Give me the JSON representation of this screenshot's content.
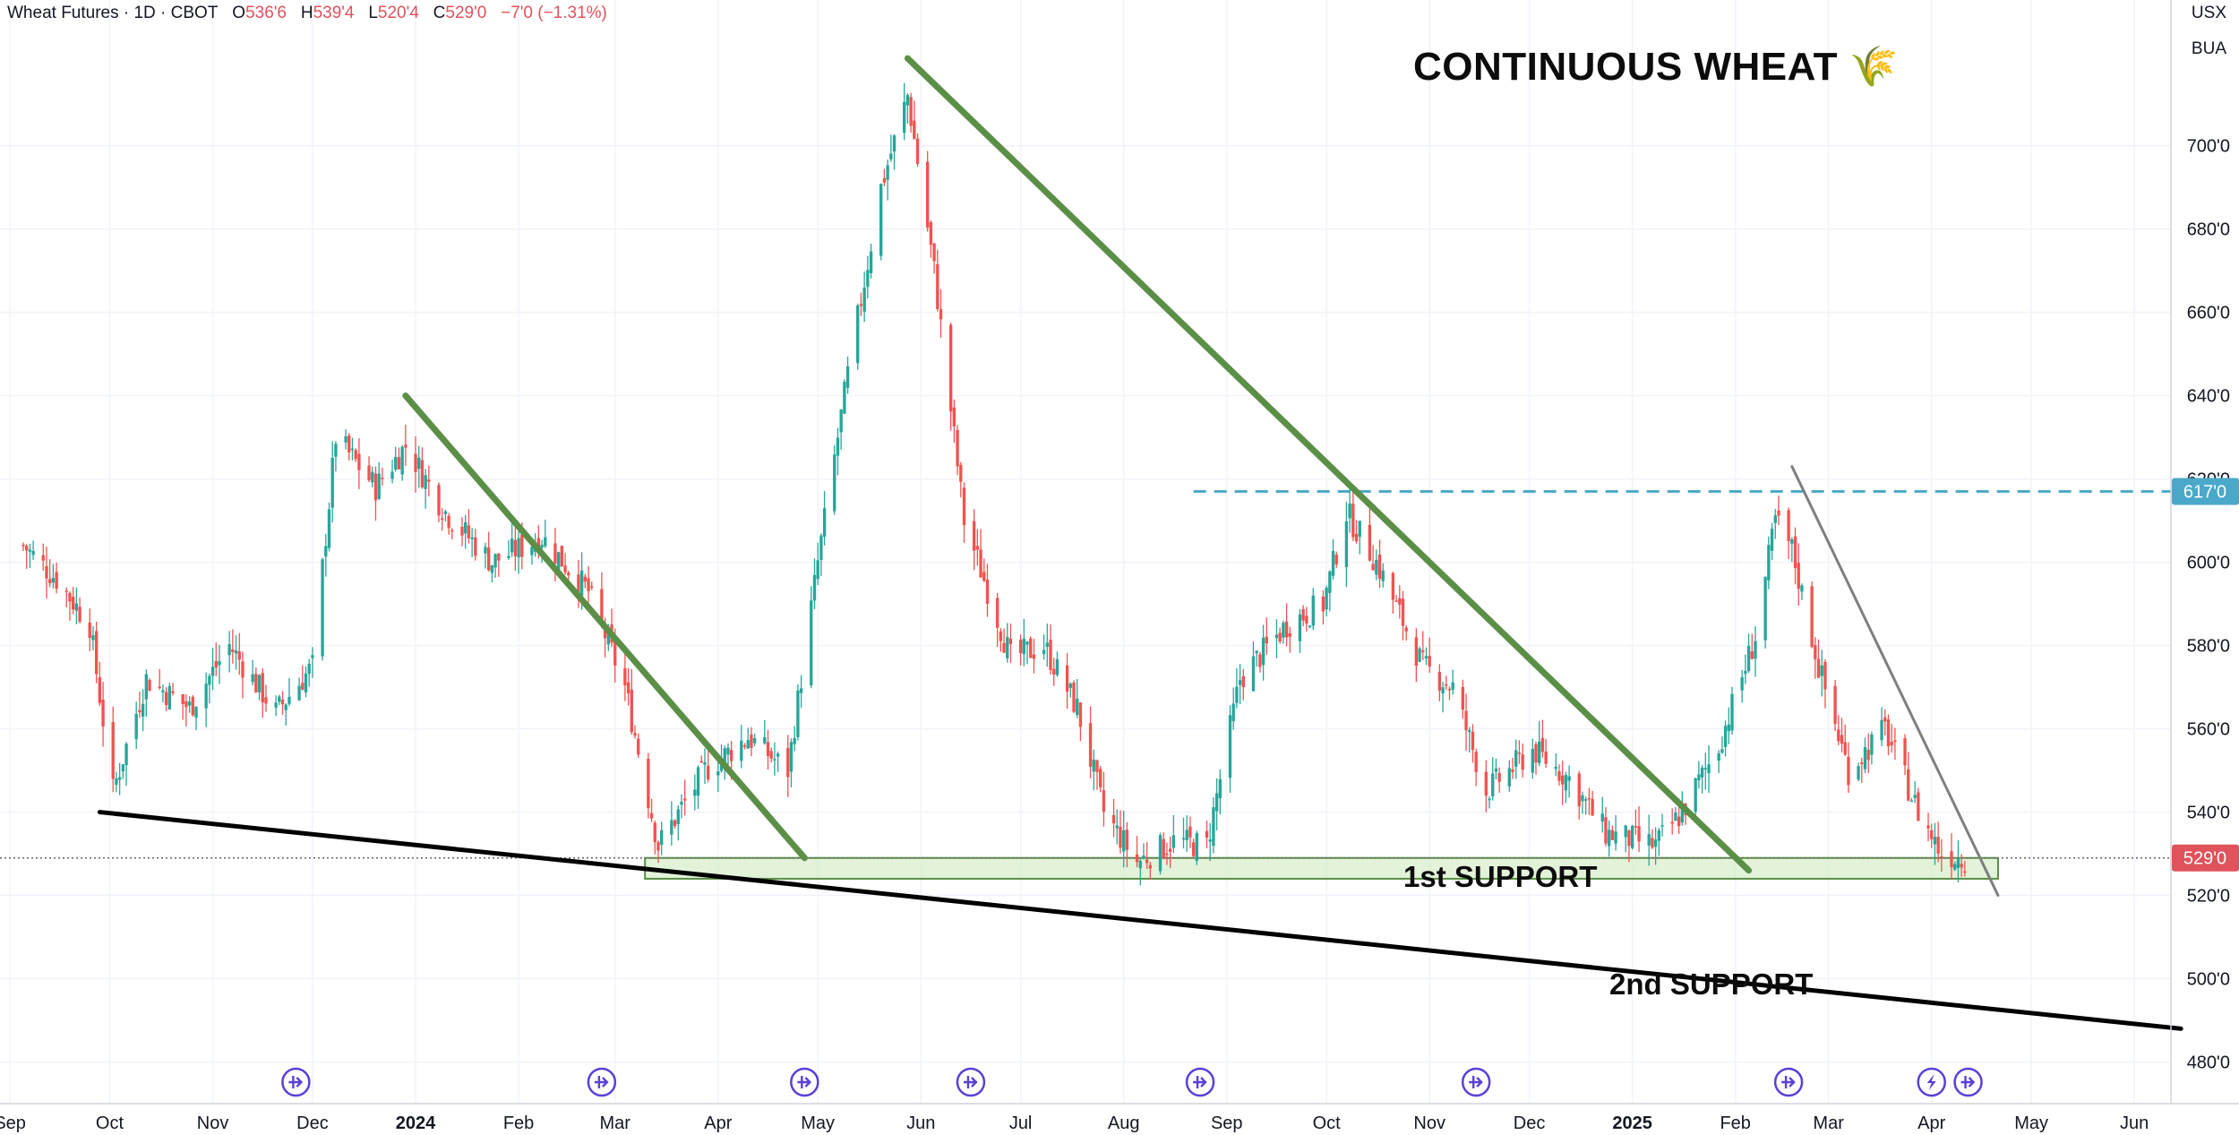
{
  "header": {
    "symbol": "Wheat Futures · 1D · CBOT",
    "o_label": "O",
    "o_value": "536'6",
    "h_label": "H",
    "h_value": "539'4",
    "l_label": "L",
    "l_value": "520'4",
    "c_label": "C",
    "c_value": "529'0",
    "change": "−7'0 (−1.31%)"
  },
  "currency": "USX",
  "unit": "BUA",
  "price_tags": {
    "resistance": "617'0",
    "last": "529'0"
  },
  "colors": {
    "up": "#26a69a",
    "down": "#ef5350",
    "trendline": "#5b8f47",
    "support_fill": "#d8efce",
    "resistance": "#4aa8c8",
    "last_tag": "#e0525c"
  },
  "event_icons": [
    "split-icon",
    "split-icon",
    "split-icon",
    "split-icon",
    "split-icon",
    "split-icon",
    "split-icon",
    "dividend-icon",
    "split-icon"
  ],
  "chart_data": {
    "type": "candlestick",
    "title": "CONTINUOUS WHEAT 🌾",
    "ylim": [
      470,
      735
    ],
    "y_ticks": [
      "700'0",
      "680'0",
      "660'0",
      "640'0",
      "620'0",
      "600'0",
      "580'0",
      "560'0",
      "540'0",
      "520'0",
      "500'0",
      "480'0"
    ],
    "y_tick_values": [
      700,
      680,
      660,
      640,
      620,
      600,
      580,
      560,
      540,
      520,
      500,
      480
    ],
    "x_ticks": [
      "Sep",
      "Oct",
      "Nov",
      "Dec",
      "2024",
      "Feb",
      "Mar",
      "Apr",
      "May",
      "Jun",
      "Jul",
      "Aug",
      "Sep",
      "Oct",
      "Nov",
      "Dec",
      "2025",
      "Feb",
      "Mar",
      "Apr",
      "May",
      "Jun"
    ],
    "x_tick_bold": [
      false,
      false,
      false,
      false,
      true,
      false,
      false,
      false,
      false,
      false,
      false,
      false,
      false,
      false,
      false,
      false,
      true,
      false,
      false,
      false,
      false,
      false
    ],
    "x_tick_dates": [
      "2023-09-01",
      "2023-10-01",
      "2023-11-01",
      "2023-12-01",
      "2024-01-01",
      "2024-02-01",
      "2024-03-01",
      "2024-04-01",
      "2024-05-01",
      "2024-06-01",
      "2024-07-01",
      "2024-08-01",
      "2024-09-01",
      "2024-10-01",
      "2024-11-01",
      "2024-12-01",
      "2025-01-01",
      "2025-02-01",
      "2025-03-01",
      "2025-04-01",
      "2025-05-01",
      "2025-06-01"
    ],
    "price_path": [
      [
        "2023-09-05",
        604
      ],
      [
        "2023-09-15",
        596
      ],
      [
        "2023-09-25",
        585
      ],
      [
        "2023-10-02",
        545
      ],
      [
        "2023-10-12",
        572
      ],
      [
        "2023-10-25",
        565
      ],
      [
        "2023-11-06",
        580
      ],
      [
        "2023-11-20",
        564
      ],
      [
        "2023-12-01",
        575
      ],
      [
        "2023-12-08",
        630
      ],
      [
        "2023-12-20",
        618
      ],
      [
        "2023-12-29",
        628
      ],
      [
        "2024-01-10",
        612
      ],
      [
        "2024-01-24",
        600
      ],
      [
        "2024-02-08",
        606
      ],
      [
        "2024-02-22",
        593
      ],
      [
        "2024-03-04",
        570
      ],
      [
        "2024-03-14",
        532
      ],
      [
        "2024-03-28",
        550
      ],
      [
        "2024-04-10",
        558
      ],
      [
        "2024-04-22",
        550
      ],
      [
        "2024-05-01",
        600
      ],
      [
        "2024-05-10",
        645
      ],
      [
        "2024-05-20",
        690
      ],
      [
        "2024-05-28",
        712
      ],
      [
        "2024-06-05",
        670
      ],
      [
        "2024-06-14",
        610
      ],
      [
        "2024-06-28",
        577
      ],
      [
        "2024-07-08",
        580
      ],
      [
        "2024-07-18",
        565
      ],
      [
        "2024-07-26",
        540
      ],
      [
        "2024-08-05",
        528
      ],
      [
        "2024-08-16",
        533
      ],
      [
        "2024-08-26",
        532
      ],
      [
        "2024-09-05",
        572
      ],
      [
        "2024-09-19",
        585
      ],
      [
        "2024-09-30",
        590
      ],
      [
        "2024-10-07",
        612
      ],
      [
        "2024-10-16",
        600
      ],
      [
        "2024-10-30",
        575
      ],
      [
        "2024-11-08",
        570
      ],
      [
        "2024-11-18",
        545
      ],
      [
        "2024-12-02",
        555
      ],
      [
        "2024-12-13",
        548
      ],
      [
        "2024-12-24",
        535
      ],
      [
        "2025-01-08",
        532
      ],
      [
        "2025-01-16",
        540
      ],
      [
        "2025-01-27",
        556
      ],
      [
        "2025-02-07",
        582
      ],
      [
        "2025-02-13",
        610
      ],
      [
        "2025-02-18",
        603
      ],
      [
        "2025-02-26",
        575
      ],
      [
        "2025-03-07",
        550
      ],
      [
        "2025-03-18",
        560
      ],
      [
        "2025-03-28",
        540
      ],
      [
        "2025-04-04",
        530
      ],
      [
        "2025-04-11",
        529
      ]
    ],
    "last_price": 529,
    "resistance_level": 617,
    "support_zone": [
      524,
      529
    ],
    "trendlines": [
      {
        "from": [
          "2023-12-29",
          640
        ],
        "to": [
          "2024-04-27",
          529
        ],
        "color": "green"
      },
      {
        "from": [
          "2024-05-28",
          721
        ],
        "to": [
          "2025-02-05",
          526
        ],
        "color": "green"
      },
      {
        "from": [
          "2025-02-18",
          623
        ],
        "to": [
          "2025-04-21",
          520
        ],
        "color": "gray"
      },
      {
        "from": [
          "2023-09-28",
          540
        ],
        "to": [
          "2025-06-15",
          488
        ],
        "color": "black"
      }
    ],
    "annotations": [
      "1st SUPPORT",
      "2nd SUPPORT"
    ]
  }
}
